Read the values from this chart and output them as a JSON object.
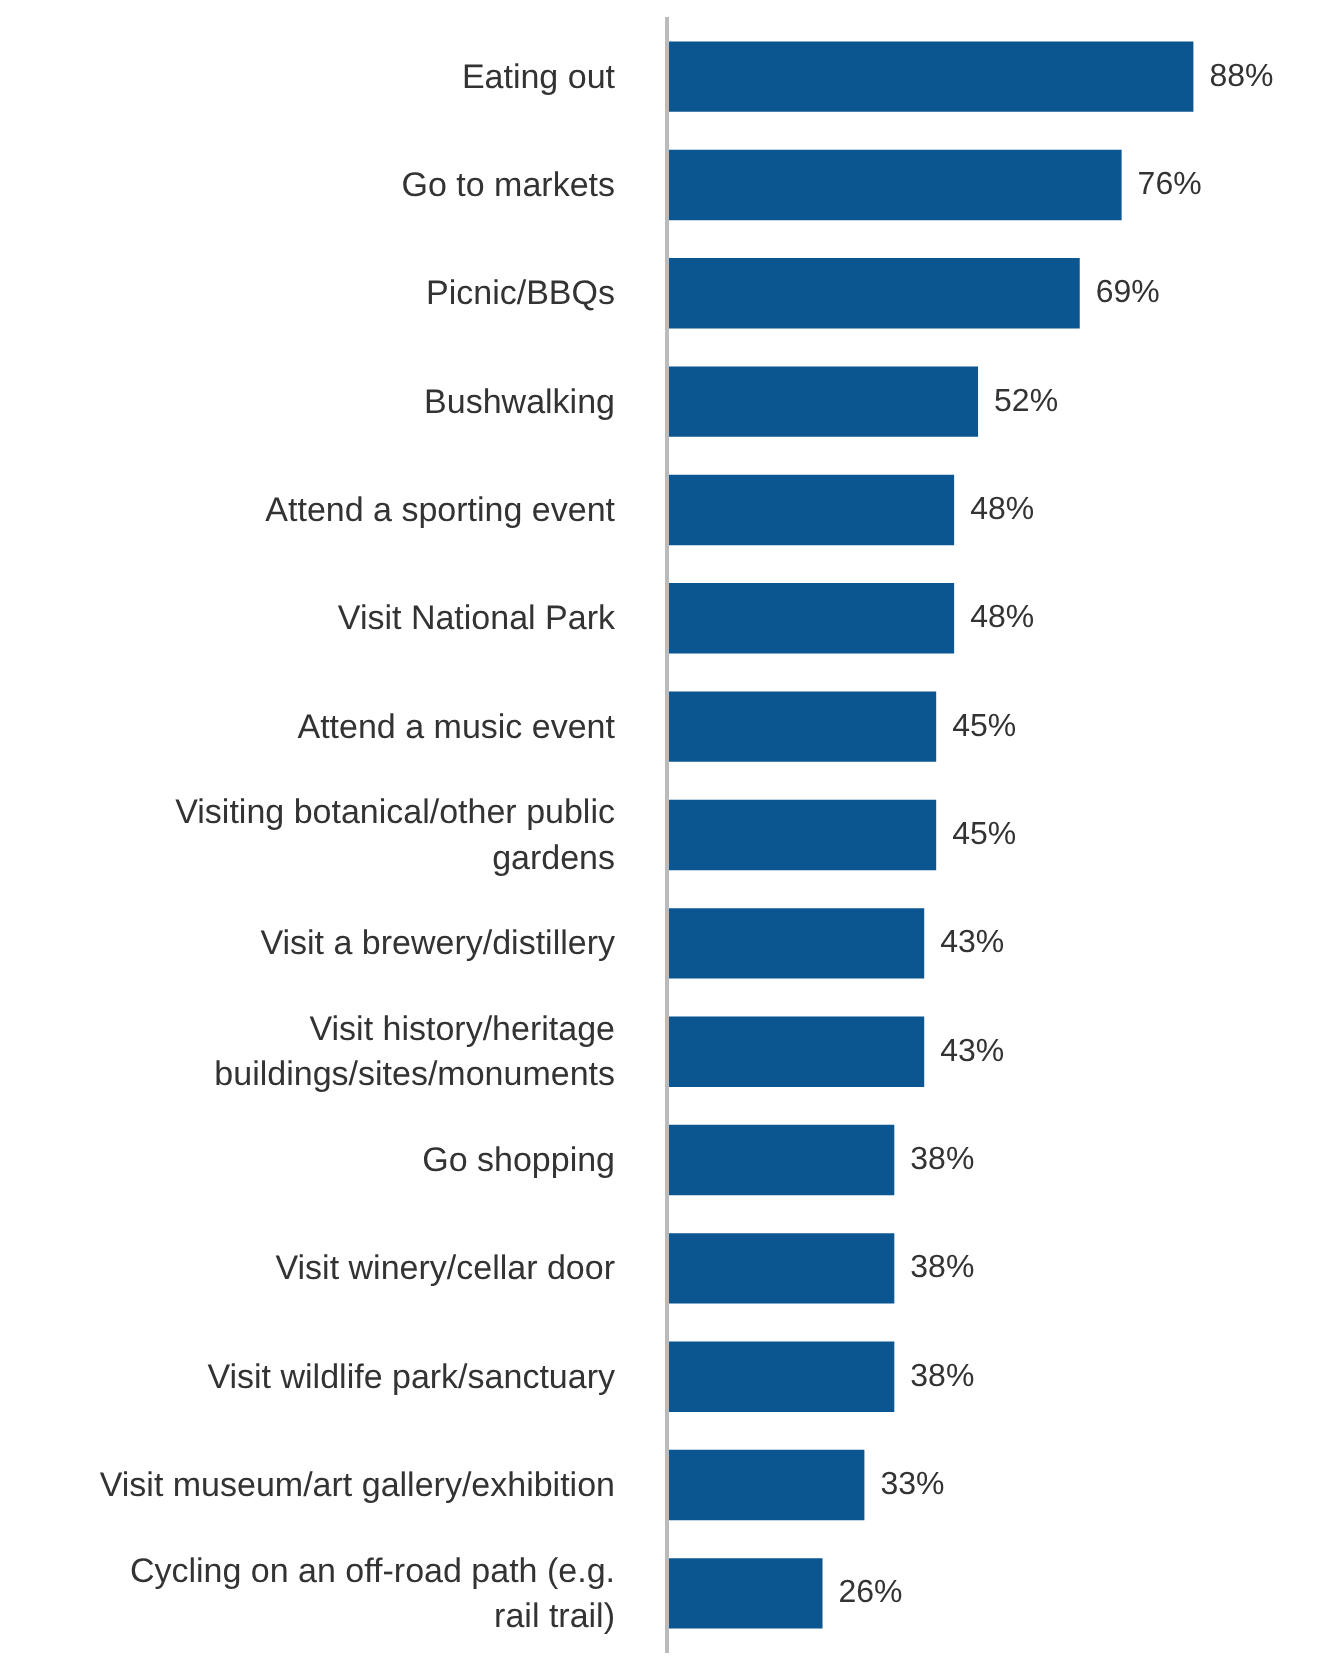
{
  "chart_data": {
    "type": "bar",
    "orientation": "horizontal",
    "color": "#0b5591",
    "categories": [
      "Eating out",
      "Go to markets",
      "Picnic/BBQs",
      "Bushwalking",
      "Attend a sporting event",
      "Visit National Park",
      "Attend a music event",
      "Visiting botanical/other public gardens",
      "Visit a brewery/distillery",
      "Visit history/heritage buildings/sites/monuments",
      "Go shopping",
      "Visit winery/cellar door",
      "Visit wildlife park/sanctuary",
      "Visit museum/art gallery/exhibition",
      "Cycling on an off-road path (e.g. rail trail)"
    ],
    "values": [
      88,
      76,
      69,
      52,
      48,
      48,
      45,
      45,
      43,
      43,
      38,
      38,
      38,
      33,
      26
    ],
    "value_labels": [
      "88%",
      "76%",
      "69%",
      "52%",
      "48%",
      "48%",
      "45%",
      "45%",
      "43%",
      "43%",
      "38%",
      "38%",
      "38%",
      "33%",
      "26%"
    ]
  }
}
